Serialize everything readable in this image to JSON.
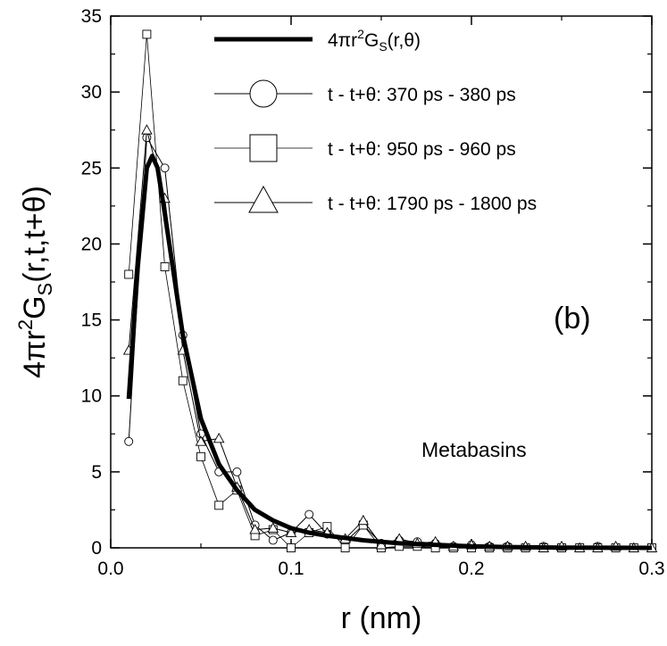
{
  "chart_data": {
    "type": "line",
    "xlabel": "r (nm)",
    "ylabel": "4πr²Gₛ(r,t,t+θ)",
    "xlim": [
      0.0,
      0.3
    ],
    "ylim": [
      0,
      35
    ],
    "x_ticks": [
      0.0,
      0.1,
      0.2,
      0.3
    ],
    "x_tick_labels": [
      "0.0",
      "0.1",
      "0.2",
      "0.3"
    ],
    "y_ticks": [
      0,
      5,
      10,
      15,
      20,
      25,
      30,
      35
    ],
    "y_tick_labels": [
      "0",
      "5",
      "10",
      "15",
      "20",
      "25",
      "30",
      "35"
    ],
    "grid": false,
    "legend_position": "top-right",
    "annotations": [
      "Metabasins",
      "(b)"
    ],
    "series": [
      {
        "name": "4πr²Gₛ(r,θ)",
        "marker": "none",
        "line": "thick",
        "x": [
          0.01,
          0.015,
          0.02,
          0.023,
          0.026,
          0.03,
          0.035,
          0.04,
          0.05,
          0.06,
          0.07,
          0.08,
          0.09,
          0.1,
          0.11,
          0.12,
          0.13,
          0.14,
          0.15,
          0.16,
          0.18,
          0.2,
          0.22,
          0.25,
          0.3
        ],
        "y": [
          9.8,
          18.5,
          25.0,
          25.8,
          25.0,
          22.0,
          18.0,
          14.0,
          8.5,
          5.5,
          3.8,
          2.5,
          1.8,
          1.3,
          1.0,
          0.8,
          0.65,
          0.5,
          0.4,
          0.3,
          0.2,
          0.1,
          0.05,
          0.02,
          0.0
        ]
      },
      {
        "name": "t - t+θ: 370 ps - 380 ps",
        "marker": "circle",
        "x": [
          0.01,
          0.02,
          0.03,
          0.04,
          0.05,
          0.06,
          0.07,
          0.08,
          0.09,
          0.1,
          0.11,
          0.12,
          0.13,
          0.14,
          0.15,
          0.16,
          0.17,
          0.18,
          0.19,
          0.2,
          0.21,
          0.22,
          0.23,
          0.24,
          0.25,
          0.26,
          0.27,
          0.28,
          0.29,
          0.3
        ],
        "y": [
          7.0,
          27.0,
          25.0,
          14.0,
          7.5,
          5.0,
          5.0,
          1.5,
          0.5,
          1.0,
          2.2,
          0.9,
          0.4,
          1.5,
          0.3,
          0.5,
          0.4,
          0.3,
          0.1,
          0.2,
          0.1,
          0.1,
          0.0,
          0.1,
          0.0,
          0.0,
          0.1,
          0.0,
          0.0,
          0.0
        ]
      },
      {
        "name": "t - t+θ: 950 ps - 960 ps",
        "marker": "square",
        "x": [
          0.01,
          0.02,
          0.03,
          0.04,
          0.05,
          0.06,
          0.07,
          0.08,
          0.09,
          0.1,
          0.11,
          0.12,
          0.13,
          0.14,
          0.15,
          0.16,
          0.17,
          0.18,
          0.19,
          0.2,
          0.21,
          0.22,
          0.23,
          0.24,
          0.25,
          0.26,
          0.27,
          0.28,
          0.29,
          0.3
        ],
        "y": [
          18.0,
          33.8,
          18.5,
          11.0,
          6.0,
          2.8,
          3.8,
          0.8,
          1.2,
          0.0,
          1.0,
          1.4,
          0.0,
          1.5,
          0.0,
          0.1,
          0.1,
          0.0,
          0.0,
          0.0,
          0.0,
          0.0,
          0.0,
          0.0,
          0.0,
          0.0,
          0.0,
          0.0,
          0.0,
          0.0
        ]
      },
      {
        "name": "t - t+θ: 1790 ps - 1800 ps",
        "marker": "triangle",
        "x": [
          0.01,
          0.02,
          0.03,
          0.04,
          0.05,
          0.06,
          0.07,
          0.08,
          0.09,
          0.1,
          0.11,
          0.12,
          0.13,
          0.14,
          0.15,
          0.16,
          0.17,
          0.18,
          0.19,
          0.2,
          0.21,
          0.22,
          0.23,
          0.24,
          0.25,
          0.26,
          0.27,
          0.28,
          0.29,
          0.3
        ],
        "y": [
          13.0,
          27.5,
          23.0,
          13.0,
          7.0,
          7.2,
          4.0,
          1.2,
          1.3,
          1.0,
          1.2,
          1.0,
          0.6,
          1.8,
          0.2,
          0.6,
          0.3,
          0.4,
          0.1,
          0.2,
          0.1,
          0.1,
          0.1,
          0.0,
          0.1,
          0.0,
          0.0,
          0.1,
          0.0,
          0.0
        ]
      }
    ]
  },
  "legend": {
    "entry0": {
      "prefix": "4πr",
      "sup": "2",
      "mid": "G",
      "sub": "S",
      "suffix": "(r,θ)"
    },
    "entry1": "t - t+θ: 370 ps - 380 ps",
    "entry2": "t - t+θ: 950 ps - 960 ps",
    "entry3": "t - t+θ: 1790 ps - 1800 ps"
  },
  "yaxis_title": {
    "prefix": "4πr",
    "sup": "2",
    "mid": "G",
    "sub": "S",
    "suffix": "(r,t,t+θ)"
  },
  "xaxis_title": "r (nm)",
  "annotation_text": "Metabasins",
  "panel_label": "(b)"
}
